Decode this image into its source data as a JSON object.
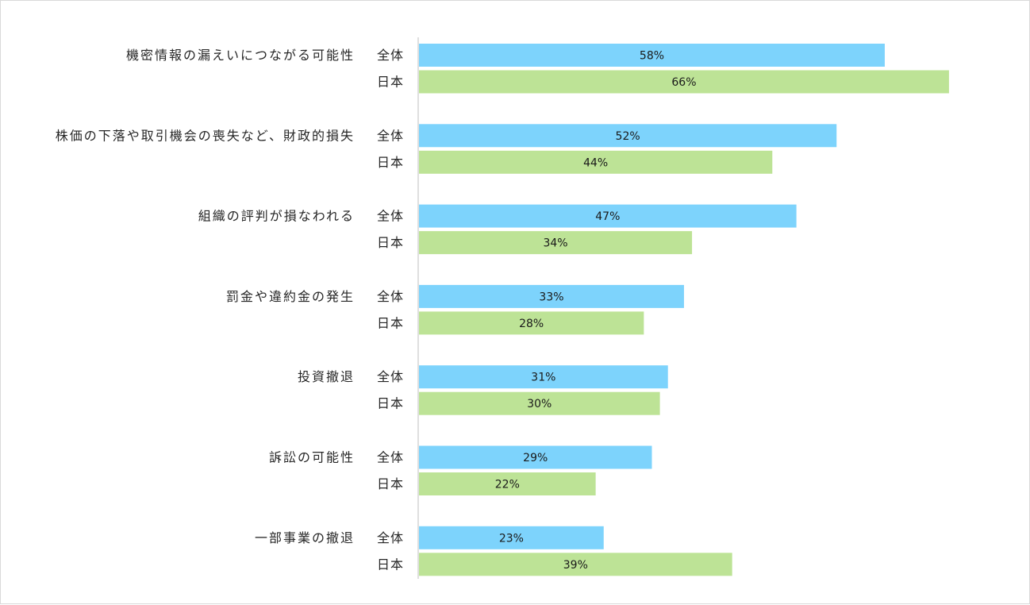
{
  "chart_data": {
    "type": "bar",
    "orientation": "horizontal",
    "categories": [
      "機密情報の漏えいにつながる可能性",
      "株価の下落や取引機会の喪失など、財政的損失",
      "組織の評判が損なわれる",
      "罰金や違約金の発生",
      "投資撤退",
      "訴訟の可能性",
      "一部事業の撤退"
    ],
    "series": [
      {
        "name": "全体",
        "color": "#7dd3fc",
        "values": [
          58,
          52,
          47,
          33,
          31,
          29,
          23
        ],
        "labels": [
          "58%",
          "52%",
          "47%",
          "33%",
          "31%",
          "29%",
          "23%"
        ]
      },
      {
        "name": "日本",
        "color": "#bde396",
        "values": [
          66,
          44,
          34,
          28,
          30,
          22,
          39
        ],
        "labels": [
          "66%",
          "44%",
          "34%",
          "28%",
          "30%",
          "22%",
          "39%"
        ]
      }
    ],
    "value_unit": "%",
    "xlim": [
      0,
      100
    ],
    "grid": false,
    "legend": "none",
    "axis_color": "#bfbfbf"
  }
}
